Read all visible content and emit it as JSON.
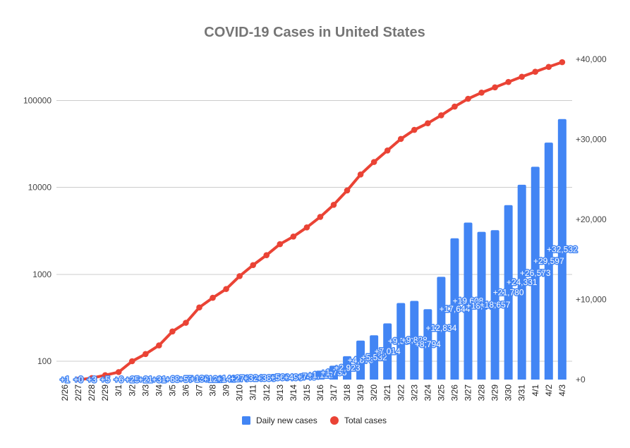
{
  "chart_data": {
    "type": "bar",
    "title": "COVID-19 Cases in United States",
    "xlabel": "",
    "ylabel": "",
    "categories": [
      "2/26",
      "2/27",
      "2/28",
      "2/29",
      "3/1",
      "3/2",
      "3/3",
      "3/4",
      "3/5",
      "3/6",
      "3/7",
      "3/8",
      "3/9",
      "3/10",
      "3/11",
      "3/12",
      "3/13",
      "3/14",
      "3/15",
      "3/16",
      "3/17",
      "3/18",
      "3/19",
      "3/20",
      "3/21",
      "3/22",
      "3/23",
      "3/24",
      "3/25",
      "3/26",
      "3/27",
      "3/28",
      "3/29",
      "3/30",
      "3/31",
      "4/1",
      "4/2",
      "4/3"
    ],
    "series": [
      {
        "name": "Daily new cases",
        "type": "bar",
        "axis": "right",
        "color": "#4285f4",
        "values": [
          1,
          0,
          3,
          5,
          6,
          25,
          21,
          31,
          68,
          57,
          139,
          121,
          141,
          276,
          324,
          385,
          563,
          496,
          748,
          1112,
          1733,
          2923,
          4870,
          5532,
          7014,
          9560,
          9828,
          8794,
          12834,
          17644,
          19608,
          18449,
          18657,
          21780,
          24331,
          26573,
          29597,
          32532
        ],
        "labels": [
          "+1",
          "+0",
          "+3",
          "+5",
          "+6",
          "+25",
          "+21",
          "+31",
          "+68",
          "+57",
          "+139",
          "+121",
          "+141",
          "+276",
          "+324",
          "+385",
          "+563",
          "+496",
          "+748",
          "+1,112",
          "+1,733",
          "+2,923",
          "+4,870",
          "+5,532",
          "+7,014",
          "+9,560",
          "+9,828",
          "+8,794",
          "+12,834",
          "+17,644",
          "+19,608",
          "+18,449",
          "+18,657",
          "+21,780",
          "+24,331",
          "+26,573",
          "+29,597",
          "+32,532"
        ]
      },
      {
        "name": "Total cases",
        "type": "line",
        "axis": "left",
        "color": "#ea4335",
        "values": [
          null,
          61,
          64,
          69,
          75,
          100,
          121,
          152,
          220,
          277,
          416,
          537,
          678,
          954,
          1278,
          1663,
          2226,
          2722,
          3470,
          4582,
          6315,
          9238,
          14108,
          19640,
          26654,
          36214,
          46042,
          54836,
          67670,
          85314,
          104922,
          123371,
          142028,
          163808,
          188139,
          214712,
          244309,
          276841
        ]
      }
    ],
    "y_left": {
      "scale": "log",
      "range": [
        61.5,
        299000
      ],
      "ticks": [
        100,
        1000,
        10000,
        100000
      ],
      "tick_labels": [
        "100",
        "1000",
        "10000",
        "100000"
      ]
    },
    "y_right": {
      "scale": "linear",
      "range": [
        0,
        40000
      ],
      "ticks": [
        0,
        10000,
        20000,
        30000,
        40000
      ],
      "tick_labels": [
        "+0",
        "+10,000",
        "+20,000",
        "+30,000",
        "+40,000"
      ]
    },
    "ylim": [
      61.5,
      299000
    ],
    "y2lim": [
      0,
      40000
    ],
    "grid": true,
    "legend": {
      "position": "bottom",
      "entries": [
        "Daily new cases",
        "Total cases"
      ]
    }
  }
}
